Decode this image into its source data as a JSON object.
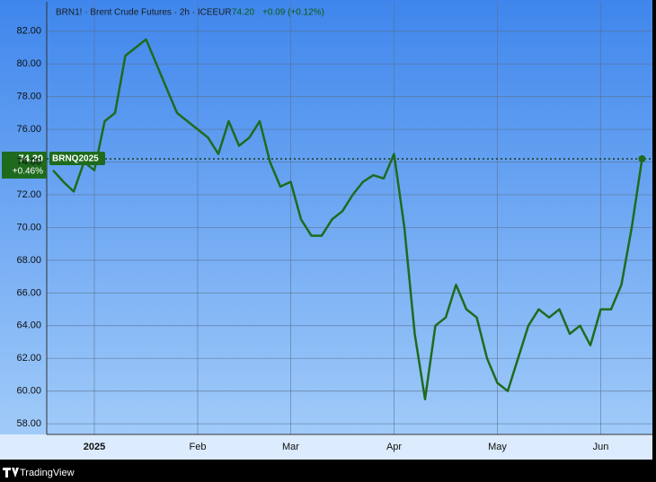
{
  "chart_data": {
    "type": "line",
    "title": "BRN1! · Brent Crude Futures · 2h · ICEEUR",
    "header_price": "74.20",
    "header_change": "+0.09 (+0.12%)",
    "categories": [
      null,
      null,
      null,
      null,
      "2025",
      null,
      null,
      null,
      null,
      null,
      null,
      null,
      null,
      null,
      "Feb",
      null,
      null,
      null,
      null,
      null,
      null,
      null,
      null,
      "Mar",
      null,
      null,
      null,
      null,
      null,
      null,
      null,
      null,
      null,
      "Apr",
      null,
      null,
      null,
      null,
      null,
      null,
      null,
      null,
      null,
      "May",
      null,
      null,
      null,
      null,
      null,
      null,
      null,
      null,
      null,
      "Jun",
      null,
      null,
      null,
      null
    ],
    "series": [
      {
        "name": "BRNQ2025",
        "color": "#1e6b1e",
        "values": [
          73.5,
          72.8,
          72.2,
          74.0,
          73.5,
          76.5,
          77.0,
          80.5,
          81.0,
          81.5,
          80.0,
          78.5,
          77.0,
          76.5,
          76.0,
          75.5,
          74.5,
          76.5,
          75.0,
          75.5,
          76.5,
          74.0,
          72.5,
          72.8,
          70.5,
          69.5,
          69.5,
          70.5,
          71.0,
          72.0,
          72.8,
          73.2,
          73.0,
          74.5,
          70.0,
          63.5,
          59.5,
          64.0,
          64.5,
          66.5,
          65.0,
          64.5,
          62.0,
          60.5,
          60.0,
          62.0,
          64.0,
          65.0,
          64.5,
          65.0,
          63.5,
          64.0,
          62.8,
          65.0,
          65.0,
          66.5,
          70.0,
          74.2
        ]
      }
    ],
    "price_line": {
      "value": 74.2,
      "label": "74.20"
    },
    "price_change": "+0.46%",
    "ylim": [
      57.35,
      83.8
    ],
    "yticks": [
      {
        "value": 58,
        "label": "58.00"
      },
      {
        "value": 60,
        "label": "60.00"
      },
      {
        "value": 62,
        "label": "62.00"
      },
      {
        "value": 64,
        "label": "64.00"
      },
      {
        "value": 66,
        "label": "66.00"
      },
      {
        "value": 68,
        "label": "68.00"
      },
      {
        "value": 70,
        "label": "70.00"
      },
      {
        "value": 72,
        "label": "72.00"
      },
      {
        "value": 74,
        "label": "74.00"
      },
      {
        "value": 76,
        "label": "76.00"
      },
      {
        "value": 78,
        "label": "78.00"
      },
      {
        "value": 80,
        "label": "80.00"
      },
      {
        "value": 82,
        "label": "82.00"
      }
    ],
    "grid": true,
    "footer": "TradingView"
  }
}
